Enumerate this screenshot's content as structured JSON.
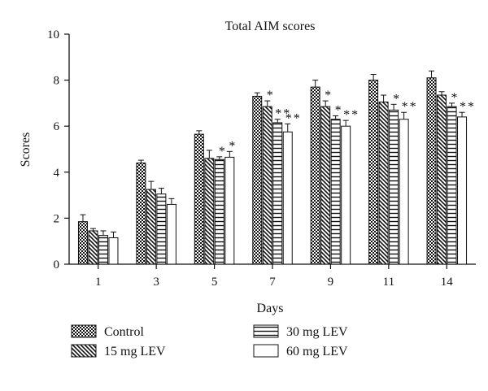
{
  "chart_data": {
    "type": "bar",
    "title": "Total AIM scores",
    "xlabel": "Days",
    "ylabel": "Scores",
    "ylim": [
      0,
      10
    ],
    "yticks": [
      0,
      2,
      4,
      6,
      8,
      10
    ],
    "categories": [
      "1",
      "3",
      "5",
      "7",
      "9",
      "11",
      "14"
    ],
    "grid": false,
    "legend_position": "bottom",
    "series": [
      {
        "name": "Control",
        "pattern": "checker",
        "values": [
          1.85,
          4.4,
          5.65,
          7.3,
          7.7,
          8.0,
          8.1
        ],
        "errors": [
          0.3,
          0.12,
          0.15,
          0.15,
          0.3,
          0.25,
          0.3
        ],
        "sig": [
          "",
          "",
          "",
          "",
          "",
          "",
          ""
        ]
      },
      {
        "name": "15 mg LEV",
        "pattern": "diagonal",
        "values": [
          1.45,
          3.25,
          4.6,
          6.85,
          6.85,
          7.05,
          7.35
        ],
        "errors": [
          0.1,
          0.35,
          0.35,
          0.25,
          0.25,
          0.3,
          0.15
        ],
        "sig": [
          "",
          "",
          "",
          "*",
          "*",
          "",
          ""
        ]
      },
      {
        "name": "30 mg LEV",
        "pattern": "horizontal",
        "values": [
          1.25,
          3.05,
          4.55,
          6.15,
          6.3,
          6.7,
          6.85
        ],
        "errors": [
          0.2,
          0.25,
          0.12,
          0.15,
          0.15,
          0.25,
          0.15
        ],
        "sig": [
          "",
          "",
          "*",
          "**",
          "*",
          "*",
          "*"
        ]
      },
      {
        "name": "60 mg LEV",
        "pattern": "open",
        "values": [
          1.15,
          2.6,
          4.65,
          5.75,
          6.0,
          6.3,
          6.4
        ],
        "errors": [
          0.25,
          0.25,
          0.25,
          0.35,
          0.25,
          0.3,
          0.2
        ],
        "sig": [
          "",
          "",
          "*",
          "**",
          "**",
          "**",
          "**"
        ]
      }
    ]
  }
}
